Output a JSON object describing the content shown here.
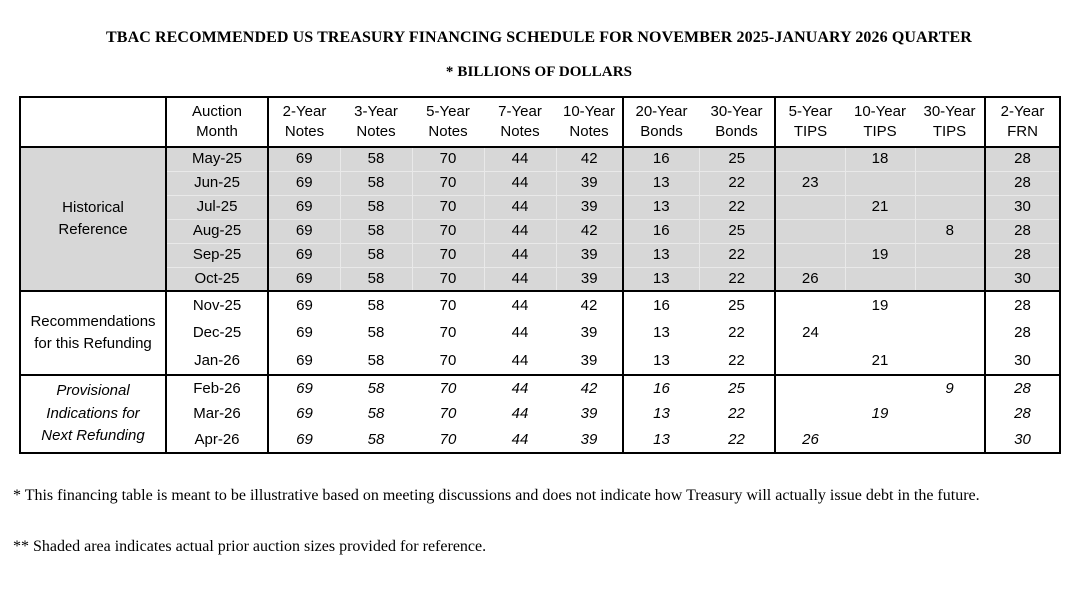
{
  "header": {
    "title": "TBAC RECOMMENDED US TREASURY FINANCING SCHEDULE FOR NOVEMBER 2025-JANUARY 2026 QUARTER",
    "subtitle": "* BILLIONS OF DOLLARS"
  },
  "table": {
    "corner_label": "",
    "columns": [
      {
        "id": "auction-month",
        "lines": [
          "Auction",
          "Month"
        ]
      },
      {
        "id": "2-year-notes",
        "lines": [
          "2-Year",
          "Notes"
        ]
      },
      {
        "id": "3-year-notes",
        "lines": [
          "3-Year",
          "Notes"
        ]
      },
      {
        "id": "5-year-notes",
        "lines": [
          "5-Year",
          "Notes"
        ]
      },
      {
        "id": "7-year-notes",
        "lines": [
          "7-Year",
          "Notes"
        ]
      },
      {
        "id": "10-year-notes",
        "lines": [
          "10-Year",
          "Notes"
        ]
      },
      {
        "id": "20-year-bonds",
        "lines": [
          "20-Year",
          "Bonds"
        ]
      },
      {
        "id": "30-year-bonds",
        "lines": [
          "30-Year",
          "Bonds"
        ]
      },
      {
        "id": "5-year-tips",
        "lines": [
          "5-Year",
          "TIPS"
        ]
      },
      {
        "id": "10-year-tips",
        "lines": [
          "10-Year",
          "TIPS"
        ]
      },
      {
        "id": "30-year-tips",
        "lines": [
          "30-Year",
          "TIPS"
        ]
      },
      {
        "id": "2-year-frn",
        "lines": [
          "2-Year",
          "FRN"
        ]
      }
    ],
    "sections": [
      {
        "id": "historical",
        "label_lines": [
          "Historical",
          "Reference"
        ],
        "shaded": true,
        "italic": false,
        "rows": [
          {
            "month": "May-25",
            "values": [
              "69",
              "58",
              "70",
              "44",
              "42",
              "16",
              "25",
              "",
              "18",
              "",
              "28"
            ]
          },
          {
            "month": "Jun-25",
            "values": [
              "69",
              "58",
              "70",
              "44",
              "39",
              "13",
              "22",
              "23",
              "",
              "",
              "28"
            ]
          },
          {
            "month": "Jul-25",
            "values": [
              "69",
              "58",
              "70",
              "44",
              "39",
              "13",
              "22",
              "",
              "21",
              "",
              "30"
            ]
          },
          {
            "month": "Aug-25",
            "values": [
              "69",
              "58",
              "70",
              "44",
              "42",
              "16",
              "25",
              "",
              "",
              "8",
              "28"
            ]
          },
          {
            "month": "Sep-25",
            "values": [
              "69",
              "58",
              "70",
              "44",
              "39",
              "13",
              "22",
              "",
              "19",
              "",
              "28"
            ]
          },
          {
            "month": "Oct-25",
            "values": [
              "69",
              "58",
              "70",
              "44",
              "39",
              "13",
              "22",
              "26",
              "",
              "",
              "30"
            ]
          }
        ]
      },
      {
        "id": "recommendations",
        "label_lines": [
          "Recommendations",
          "for this Refunding"
        ],
        "shaded": false,
        "italic": false,
        "rows": [
          {
            "month": "Nov-25",
            "values": [
              "69",
              "58",
              "70",
              "44",
              "42",
              "16",
              "25",
              "",
              "19",
              "",
              "28"
            ]
          },
          {
            "month": "Dec-25",
            "values": [
              "69",
              "58",
              "70",
              "44",
              "39",
              "13",
              "22",
              "24",
              "",
              "",
              "28"
            ]
          },
          {
            "month": "Jan-26",
            "values": [
              "69",
              "58",
              "70",
              "44",
              "39",
              "13",
              "22",
              "",
              "21",
              "",
              "30"
            ]
          }
        ]
      },
      {
        "id": "provisional",
        "label_lines": [
          "Provisional",
          "Indications for",
          "Next Refunding"
        ],
        "shaded": false,
        "italic": true,
        "rows": [
          {
            "month": "Feb-26",
            "values": [
              "69",
              "58",
              "70",
              "44",
              "42",
              "16",
              "25",
              "",
              "",
              "9",
              "28"
            ]
          },
          {
            "month": "Mar-26",
            "values": [
              "69",
              "58",
              "70",
              "44",
              "39",
              "13",
              "22",
              "",
              "19",
              "",
              "28"
            ]
          },
          {
            "month": "Apr-26",
            "values": [
              "69",
              "58",
              "70",
              "44",
              "39",
              "13",
              "22",
              "26",
              "",
              "",
              "30"
            ]
          }
        ]
      }
    ]
  },
  "footnotes": [
    "* This financing table is meant to be illustrative based on meeting discussions and does not indicate how Treasury will actually issue debt in the future.",
    "** Shaded area indicates actual prior auction sizes provided for reference."
  ],
  "colors": {
    "shaded_area": "#d7d7d7",
    "border": "#000000",
    "text": "#000000"
  }
}
